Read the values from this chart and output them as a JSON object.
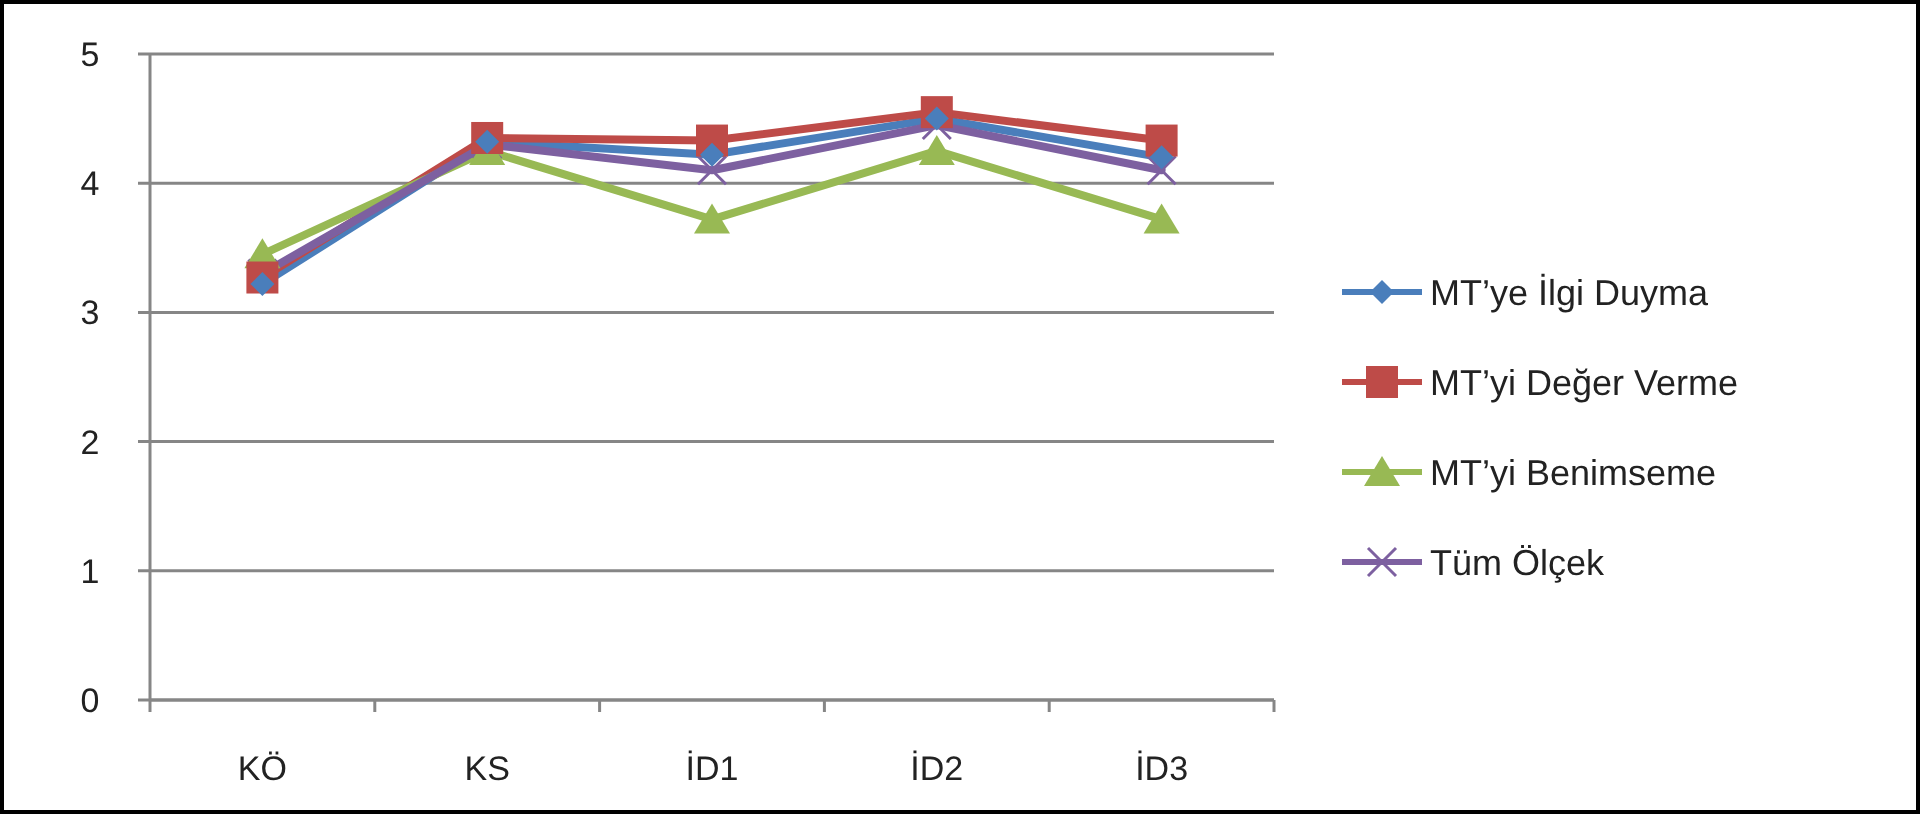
{
  "chart_data": {
    "type": "line",
    "categories": [
      "KÖ",
      "KS",
      "İD1",
      "İD2",
      "İD3"
    ],
    "series": [
      {
        "name": "MT’ye İlgi Duyma",
        "color": "#4a7ebb",
        "marker": "diamond",
        "values": [
          3.22,
          4.32,
          4.22,
          4.5,
          4.2
        ]
      },
      {
        "name": "MT’yi Değer Verme",
        "color": "#be4b48",
        "marker": "square",
        "values": [
          3.27,
          4.35,
          4.33,
          4.55,
          4.33
        ]
      },
      {
        "name": "MT’yi Benimseme",
        "color": "#98b954",
        "marker": "triangle",
        "values": [
          3.45,
          4.25,
          3.72,
          4.25,
          3.72
        ]
      },
      {
        "name": "Tüm Ölçek",
        "color": "#7d60a0",
        "marker": "cross",
        "values": [
          3.3,
          4.3,
          4.1,
          4.45,
          4.1
        ]
      }
    ],
    "ylim": [
      0,
      5
    ],
    "yticks": [
      0,
      1,
      2,
      3,
      4,
      5
    ],
    "grid": "y",
    "legend": "right"
  }
}
